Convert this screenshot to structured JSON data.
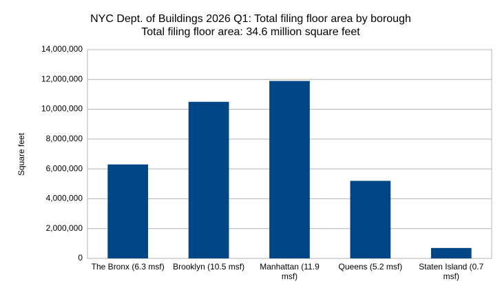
{
  "chart_data": {
    "type": "bar",
    "title": "NYC Dept. of Buildings 2026 Q1: Total filing floor area by borough",
    "subtitle": "Total filing floor area: 34.6 million square feet",
    "y_label": "Square feet",
    "categories": [
      "The Bronx (6.3 msf)",
      "Brooklyn (10.5 msf)",
      "Manhattan (11.9 msf)",
      "Queens (5.2 msf)",
      "Staten Island (0.7 msf)"
    ],
    "values": [
      6300000,
      10500000,
      11900000,
      5200000,
      700000
    ],
    "color": "#004586",
    "ylim": [
      0,
      14000000
    ],
    "yticks": [
      0,
      {
        "value": 2000000,
        "label": "2,000,000"
      },
      {
        "value": 4000000,
        "label": "4,000,000"
      },
      {
        "value": 6000000,
        "label": "6,000,000"
      },
      {
        "value": 8000000,
        "label": "8,000,000"
      },
      {
        "value": 10000000,
        "label": "10,000,000"
      },
      {
        "value": 12000000,
        "label": "12,000,000"
      },
      {
        "value": 14000000,
        "label": "14,000,000"
      }
    ],
    "grid": true
  }
}
